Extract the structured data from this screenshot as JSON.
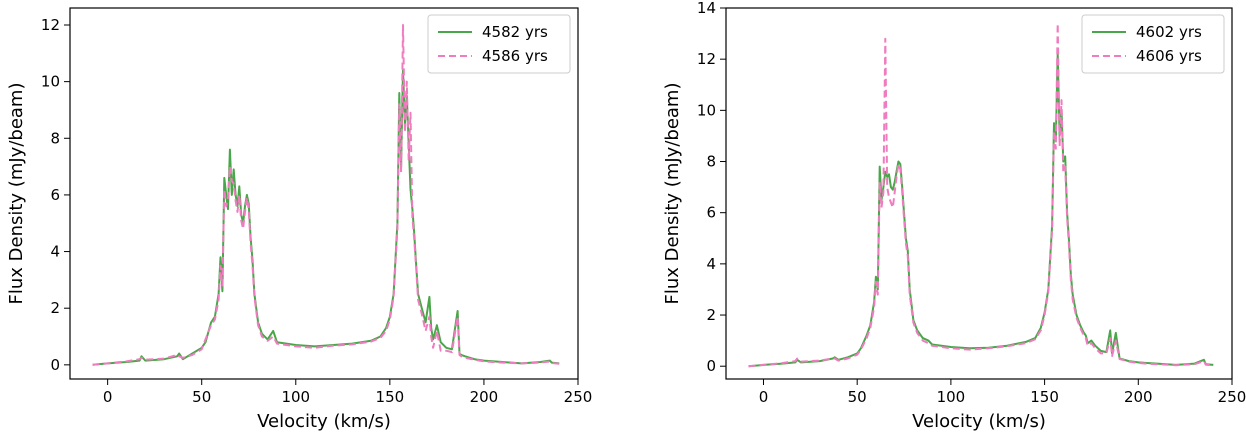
{
  "chart_data": [
    {
      "type": "line",
      "xlabel": "Velocity (km/s)",
      "ylabel": "Flux Density (mJy/beam)",
      "xlim": [
        -20,
        250
      ],
      "ylim": [
        -0.5,
        12.6
      ],
      "xticks": [
        0,
        50,
        100,
        150,
        200,
        250
      ],
      "yticks": [
        0,
        2,
        4,
        6,
        8,
        10,
        12
      ],
      "grid": false,
      "legend_position": "top-right",
      "series": [
        {
          "name": "4582 yrs",
          "color": "#4aa64a",
          "style": "solid",
          "x": [
            -8,
            0,
            10,
            17,
            18,
            20,
            30,
            37,
            38,
            40,
            45,
            50,
            52,
            55,
            57,
            59,
            60,
            61,
            62,
            63,
            64,
            65,
            66,
            67,
            68,
            69,
            70,
            71,
            72,
            73,
            74,
            75,
            76,
            77,
            78,
            80,
            82,
            85,
            88,
            90,
            95,
            100,
            110,
            120,
            130,
            140,
            145,
            148,
            150,
            152,
            154,
            155,
            156,
            157,
            158,
            159,
            160,
            161,
            162,
            163,
            164,
            165,
            167,
            169,
            171,
            172,
            173,
            175,
            177,
            180,
            183,
            186,
            187,
            188,
            190,
            195,
            200,
            210,
            220,
            230,
            235,
            236,
            240
          ],
          "y": [
            0.0,
            0.05,
            0.1,
            0.15,
            0.3,
            0.15,
            0.2,
            0.3,
            0.4,
            0.2,
            0.4,
            0.6,
            0.8,
            1.5,
            1.7,
            2.5,
            3.8,
            2.6,
            6.6,
            6.0,
            5.5,
            7.6,
            6.0,
            6.9,
            6.0,
            5.6,
            6.3,
            5.3,
            5.0,
            5.6,
            6.0,
            5.7,
            4.5,
            3.7,
            2.5,
            1.5,
            1.1,
            0.9,
            1.2,
            0.8,
            0.75,
            0.7,
            0.65,
            0.7,
            0.75,
            0.85,
            1.0,
            1.3,
            1.7,
            2.5,
            5.0,
            9.6,
            7.0,
            10.4,
            8.5,
            9.5,
            7.8,
            6.2,
            5.5,
            4.6,
            3.5,
            2.5,
            2.0,
            1.5,
            2.4,
            1.3,
            0.9,
            1.4,
            0.8,
            0.6,
            0.55,
            1.9,
            0.4,
            0.35,
            0.3,
            0.2,
            0.15,
            0.1,
            0.05,
            0.1,
            0.15,
            0.08,
            0.05
          ]
        },
        {
          "name": "4586 yrs",
          "color": "#f07cc0",
          "style": "dashed",
          "x": [
            -8,
            0,
            10,
            17,
            18,
            20,
            30,
            37,
            38,
            40,
            45,
            50,
            52,
            55,
            57,
            59,
            60,
            61,
            62,
            63,
            64,
            65,
            66,
            67,
            68,
            69,
            70,
            71,
            72,
            73,
            74,
            75,
            76,
            77,
            78,
            80,
            82,
            85,
            88,
            90,
            95,
            100,
            110,
            120,
            130,
            140,
            145,
            148,
            150,
            152,
            154,
            155,
            156,
            157,
            158,
            159,
            160,
            161,
            162,
            163,
            164,
            165,
            167,
            169,
            171,
            172,
            173,
            175,
            177,
            180,
            183,
            186,
            187,
            188,
            190,
            195,
            200,
            210,
            220,
            230,
            235,
            236,
            240
          ],
          "y": [
            0.0,
            0.05,
            0.12,
            0.2,
            0.25,
            0.18,
            0.22,
            0.35,
            0.3,
            0.25,
            0.35,
            0.55,
            0.9,
            1.4,
            1.6,
            2.3,
            3.5,
            2.8,
            6.2,
            5.6,
            5.9,
            7.0,
            6.5,
            6.4,
            5.8,
            5.4,
            6.0,
            5.1,
            4.8,
            5.4,
            5.9,
            5.5,
            4.3,
            3.5,
            2.4,
            1.4,
            1.0,
            0.85,
            1.0,
            0.75,
            0.7,
            0.65,
            0.6,
            0.68,
            0.72,
            0.82,
            0.95,
            1.2,
            1.6,
            2.4,
            4.8,
            9.2,
            6.8,
            12.0,
            8.2,
            10.0,
            7.2,
            8.9,
            5.2,
            4.4,
            3.4,
            2.3,
            1.8,
            1.2,
            1.7,
            1.0,
            0.6,
            1.2,
            0.5,
            0.5,
            0.45,
            1.7,
            0.35,
            0.3,
            0.25,
            0.18,
            0.12,
            0.08,
            0.05,
            0.08,
            0.12,
            0.06,
            0.04
          ]
        }
      ]
    },
    {
      "type": "line",
      "xlabel": "Velocity (km/s)",
      "ylabel": "Flux Density (mJy/beam)",
      "xlim": [
        -20,
        250
      ],
      "ylim": [
        -0.5,
        14.0
      ],
      "xticks": [
        0,
        50,
        100,
        150,
        200,
        250
      ],
      "yticks": [
        0,
        2,
        4,
        6,
        8,
        10,
        12,
        14
      ],
      "grid": false,
      "legend_position": "top-right",
      "series": [
        {
          "name": "4602 yrs",
          "color": "#4aa64a",
          "style": "solid",
          "x": [
            -8,
            0,
            10,
            17,
            18,
            20,
            30,
            37,
            38,
            40,
            45,
            50,
            52,
            55,
            57,
            59,
            60,
            61,
            62,
            63,
            64,
            65,
            66,
            67,
            68,
            69,
            70,
            71,
            72,
            73,
            74,
            75,
            76,
            77,
            78,
            80,
            82,
            85,
            88,
            90,
            95,
            100,
            110,
            120,
            130,
            140,
            145,
            148,
            150,
            152,
            154,
            155,
            156,
            157,
            158,
            159,
            160,
            161,
            162,
            163,
            164,
            165,
            167,
            169,
            171,
            172,
            173,
            175,
            177,
            180,
            183,
            185,
            186,
            188,
            190,
            195,
            200,
            210,
            220,
            230,
            235,
            236,
            240
          ],
          "y": [
            0.0,
            0.05,
            0.1,
            0.15,
            0.25,
            0.15,
            0.2,
            0.3,
            0.35,
            0.25,
            0.35,
            0.5,
            0.7,
            1.2,
            1.6,
            2.5,
            3.5,
            3.0,
            7.8,
            6.5,
            7.0,
            7.6,
            7.4,
            7.5,
            7.0,
            6.9,
            7.2,
            7.6,
            8.0,
            7.9,
            7.0,
            6.0,
            5.0,
            4.5,
            3.0,
            1.8,
            1.4,
            1.1,
            1.0,
            0.85,
            0.8,
            0.75,
            0.7,
            0.72,
            0.8,
            0.95,
            1.1,
            1.5,
            2.1,
            3.0,
            5.5,
            9.5,
            8.8,
            12.2,
            9.0,
            10.0,
            8.0,
            8.2,
            6.0,
            4.9,
            3.6,
            2.8,
            2.0,
            1.6,
            1.3,
            1.2,
            0.9,
            1.0,
            0.8,
            0.6,
            0.55,
            1.4,
            0.5,
            1.3,
            0.3,
            0.2,
            0.15,
            0.1,
            0.05,
            0.1,
            0.25,
            0.08,
            0.05
          ]
        },
        {
          "name": "4606 yrs",
          "color": "#f07cc0",
          "style": "dashed",
          "x": [
            -8,
            0,
            10,
            17,
            18,
            20,
            30,
            37,
            38,
            40,
            45,
            50,
            52,
            55,
            57,
            59,
            60,
            61,
            62,
            63,
            64,
            65,
            66,
            67,
            68,
            69,
            70,
            71,
            72,
            73,
            74,
            75,
            76,
            77,
            78,
            80,
            82,
            85,
            88,
            90,
            95,
            100,
            110,
            120,
            130,
            140,
            145,
            148,
            150,
            152,
            154,
            155,
            156,
            157,
            158,
            159,
            160,
            161,
            162,
            163,
            164,
            165,
            167,
            169,
            171,
            172,
            173,
            175,
            177,
            180,
            183,
            185,
            186,
            188,
            190,
            195,
            200,
            210,
            220,
            230,
            235,
            236,
            240
          ],
          "y": [
            0.0,
            0.05,
            0.12,
            0.2,
            0.3,
            0.18,
            0.22,
            0.3,
            0.3,
            0.22,
            0.3,
            0.45,
            0.65,
            1.1,
            1.5,
            2.3,
            3.3,
            2.8,
            7.2,
            6.2,
            6.8,
            12.8,
            7.0,
            6.6,
            6.4,
            6.2,
            6.8,
            7.4,
            7.9,
            7.7,
            6.8,
            5.8,
            4.8,
            4.3,
            2.8,
            1.7,
            1.3,
            1.0,
            0.9,
            0.8,
            0.75,
            0.7,
            0.65,
            0.7,
            0.78,
            0.9,
            1.05,
            1.4,
            2.0,
            2.9,
            5.3,
            9.2,
            8.5,
            13.4,
            8.6,
            10.4,
            7.6,
            7.8,
            5.8,
            4.7,
            3.4,
            2.6,
            1.9,
            1.5,
            1.2,
            1.1,
            0.8,
            0.9,
            0.7,
            0.5,
            0.5,
            1.1,
            0.4,
            1.0,
            0.28,
            0.18,
            0.12,
            0.08,
            0.04,
            0.08,
            0.2,
            0.06,
            0.04
          ]
        }
      ]
    }
  ]
}
